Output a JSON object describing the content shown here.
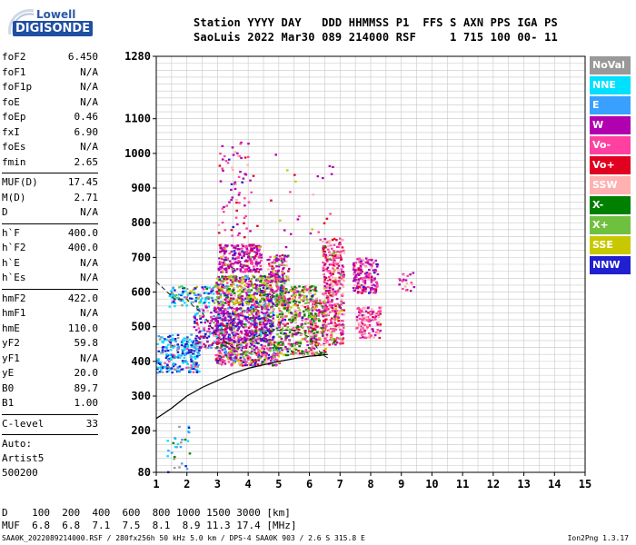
{
  "logo": {
    "brand_top": "Lowell",
    "brand_main": "DIGISONDE"
  },
  "header": {
    "line1": "Station YYYY DAY   DDD HHMMSS P1  FFS S AXN PPS IGA PS",
    "line2": "SaoLuis 2022 Mar30 089 214000 RSF     1 715 100 00- 11"
  },
  "params": [
    {
      "type": "row",
      "key": "foF2",
      "value": "6.450"
    },
    {
      "type": "row",
      "key": "foF1",
      "value": "N/A"
    },
    {
      "type": "row",
      "key": "foF1p",
      "value": "N/A"
    },
    {
      "type": "row",
      "key": "foE",
      "value": "N/A"
    },
    {
      "type": "row",
      "key": "foEp",
      "value": "0.46"
    },
    {
      "type": "row",
      "key": "fxI",
      "value": "6.90"
    },
    {
      "type": "row",
      "key": "foEs",
      "value": "N/A"
    },
    {
      "type": "row",
      "key": "fmin",
      "value": "2.65"
    },
    {
      "type": "sep"
    },
    {
      "type": "row",
      "key": "MUF(D)",
      "value": "17.45"
    },
    {
      "type": "row",
      "key": "M(D)",
      "value": "2.71"
    },
    {
      "type": "row",
      "key": "D",
      "value": "N/A"
    },
    {
      "type": "sep"
    },
    {
      "type": "row",
      "key": "h`F",
      "value": "400.0"
    },
    {
      "type": "row",
      "key": "h`F2",
      "value": "400.0"
    },
    {
      "type": "row",
      "key": "h`E",
      "value": "N/A"
    },
    {
      "type": "row",
      "key": "h`Es",
      "value": "N/A"
    },
    {
      "type": "sep"
    },
    {
      "type": "row",
      "key": "hmF2",
      "value": "422.0"
    },
    {
      "type": "row",
      "key": "hmF1",
      "value": "N/A"
    },
    {
      "type": "row",
      "key": "hmE",
      "value": "110.0"
    },
    {
      "type": "row",
      "key": "yF2",
      "value": "59.8"
    },
    {
      "type": "row",
      "key": "yF1",
      "value": "N/A"
    },
    {
      "type": "row",
      "key": "yE",
      "value": "20.0"
    },
    {
      "type": "row",
      "key": "B0",
      "value": "89.7"
    },
    {
      "type": "row",
      "key": "B1",
      "value": "1.00"
    },
    {
      "type": "sep"
    },
    {
      "type": "row",
      "key": "C-level",
      "value": "33"
    },
    {
      "type": "sep"
    },
    {
      "type": "text",
      "text": "Auto:"
    },
    {
      "type": "text",
      "text": "Artist5"
    },
    {
      "type": "text",
      "text": "500200"
    }
  ],
  "legend": [
    {
      "label": "NoVal",
      "color": "#999999"
    },
    {
      "label": "NNE",
      "color": "#00e0ff"
    },
    {
      "label": "E",
      "color": "#3aa0ff"
    },
    {
      "label": "W",
      "color": "#b000b0"
    },
    {
      "label": "Vo-",
      "color": "#ff40a0"
    },
    {
      "label": "Vo+",
      "color": "#e00020"
    },
    {
      "label": "SSW",
      "color": "#ffb0b0"
    },
    {
      "label": "X-",
      "color": "#008000"
    },
    {
      "label": "X+",
      "color": "#70c040"
    },
    {
      "label": "SSE",
      "color": "#c8c800"
    },
    {
      "label": "NNW",
      "color": "#2020d0"
    }
  ],
  "bottom": {
    "row1": "D    100  200  400  600  800 1000 1500 3000 [km]",
    "row2": "MUF  6.8  6.8  7.1  7.5  8.1  8.9 11.3 17.4 [MHz]"
  },
  "footer": {
    "left": "SAA0K_2022089214000.RSF / 280fx256h 50 kHz 5.0 km / DPS-4 SAA0K 903 / 2.6 S 315.8 E",
    "right": "Ion2Png 1.3.17"
  },
  "chart_data": {
    "type": "scatter",
    "title": "",
    "xlabel": "",
    "ylabel": "",
    "xlim": [
      1,
      15
    ],
    "ylim": [
      80,
      1280
    ],
    "x_ticks": [
      "1",
      "2",
      "3",
      "4",
      "5",
      "6",
      "7",
      "8",
      "9",
      "10",
      "11",
      "12",
      "13",
      "14",
      "15"
    ],
    "y_ticks": [
      "80",
      "200",
      "300",
      "400",
      "500",
      "600",
      "700",
      "800",
      "900",
      "1000",
      "1100",
      "1280"
    ],
    "grid": true,
    "legend_position": "right",
    "colors": [
      "#999999",
      "#00e0ff",
      "#3aa0ff",
      "#b000b0",
      "#ff40a0",
      "#e00020",
      "#ffb0b0",
      "#008000",
      "#70c040",
      "#c8c800",
      "#2020d0"
    ],
    "clusters": [
      {
        "x": [
          1.0,
          2.4
        ],
        "y": [
          370,
          480
        ],
        "weights": [
          4,
          10,
          3,
          0,
          1,
          0,
          0,
          0,
          0,
          0,
          12
        ],
        "n": 260
      },
      {
        "x": [
          1.4,
          2.9
        ],
        "y": [
          560,
          620
        ],
        "weights": [
          1,
          6,
          4,
          0,
          1,
          0,
          0,
          1,
          2,
          3,
          5
        ],
        "n": 120
      },
      {
        "x": [
          2.2,
          3.0
        ],
        "y": [
          440,
          560
        ],
        "weights": [
          1,
          1,
          2,
          6,
          3,
          1,
          2,
          0,
          0,
          0,
          4
        ],
        "n": 120
      },
      {
        "x": [
          3.0,
          4.4
        ],
        "y": [
          660,
          740
        ],
        "weights": [
          0,
          0,
          0,
          12,
          5,
          1,
          1,
          0,
          1,
          1,
          1
        ],
        "n": 260
      },
      {
        "x": [
          2.9,
          5.2
        ],
        "y": [
          560,
          650
        ],
        "weights": [
          1,
          0,
          1,
          6,
          3,
          2,
          1,
          4,
          4,
          7,
          2
        ],
        "n": 520
      },
      {
        "x": [
          2.9,
          4.8
        ],
        "y": [
          460,
          560
        ],
        "weights": [
          1,
          1,
          1,
          10,
          4,
          1,
          1,
          1,
          1,
          1,
          4
        ],
        "n": 560
      },
      {
        "x": [
          2.9,
          5.0
        ],
        "y": [
          390,
          460
        ],
        "weights": [
          0,
          0,
          1,
          4,
          5,
          2,
          2,
          2,
          2,
          2,
          2
        ],
        "n": 380
      },
      {
        "x": [
          4.6,
          5.3
        ],
        "y": [
          630,
          710
        ],
        "weights": [
          0,
          0,
          0,
          8,
          5,
          1,
          2,
          1,
          1,
          1,
          1
        ],
        "n": 110
      },
      {
        "x": [
          4.9,
          6.2
        ],
        "y": [
          420,
          620
        ],
        "weights": [
          0,
          0,
          0,
          3,
          5,
          2,
          3,
          6,
          5,
          3,
          1
        ],
        "n": 460
      },
      {
        "x": [
          6.0,
          6.5
        ],
        "y": [
          420,
          580
        ],
        "weights": [
          0,
          0,
          0,
          3,
          6,
          2,
          3,
          3,
          2,
          2,
          0
        ],
        "n": 150
      },
      {
        "x": [
          6.4,
          7.1
        ],
        "y": [
          450,
          760
        ],
        "weights": [
          0,
          0,
          0,
          4,
          10,
          3,
          4,
          1,
          1,
          1,
          0
        ],
        "n": 380
      },
      {
        "x": [
          7.4,
          8.2
        ],
        "y": [
          600,
          700
        ],
        "weights": [
          0,
          0,
          0,
          10,
          6,
          1,
          2,
          0,
          0,
          0,
          1
        ],
        "n": 180
      },
      {
        "x": [
          7.5,
          8.3
        ],
        "y": [
          470,
          560
        ],
        "weights": [
          0,
          0,
          0,
          3,
          8,
          2,
          6,
          0,
          0,
          0,
          0
        ],
        "n": 130
      },
      {
        "x": [
          8.9,
          9.4
        ],
        "y": [
          600,
          660
        ],
        "weights": [
          0,
          0,
          0,
          7,
          4,
          1,
          1,
          0,
          0,
          0,
          0
        ],
        "n": 20
      },
      {
        "x": [
          3.0,
          4.0
        ],
        "y": [
          760,
          1050
        ],
        "weights": [
          0,
          0,
          0,
          6,
          6,
          3,
          2,
          0,
          0,
          0,
          1
        ],
        "n": 70
      },
      {
        "x": [
          1.3,
          2.1
        ],
        "y": [
          80,
          220
        ],
        "weights": [
          1,
          3,
          2,
          0,
          0,
          0,
          0,
          1,
          0,
          0,
          3
        ],
        "n": 30
      },
      {
        "x": [
          4.0,
          6.8
        ],
        "y": [
          720,
          1000
        ],
        "weights": [
          0,
          0,
          0,
          4,
          4,
          3,
          1,
          0,
          0,
          2,
          0
        ],
        "n": 30
      }
    ],
    "trace_dashed": [
      [
        1.0,
        630
      ],
      [
        1.6,
        580
      ],
      [
        2.0,
        580
      ],
      [
        2.2,
        560
      ],
      [
        2.5,
        540
      ],
      [
        3.0,
        470
      ],
      [
        3.5,
        440
      ],
      [
        4.0,
        460
      ],
      [
        4.5,
        480
      ],
      [
        5.0,
        490
      ],
      [
        5.5,
        490
      ],
      [
        6.0,
        470
      ],
      [
        6.4,
        420
      ],
      [
        6.6,
        410
      ]
    ],
    "trace_solid": [
      [
        1.0,
        235
      ],
      [
        1.5,
        265
      ],
      [
        2.0,
        300
      ],
      [
        2.5,
        325
      ],
      [
        3.0,
        345
      ],
      [
        3.5,
        365
      ],
      [
        4.0,
        380
      ],
      [
        4.5,
        390
      ],
      [
        5.0,
        400
      ],
      [
        5.5,
        408
      ],
      [
        6.0,
        415
      ],
      [
        6.4,
        418
      ],
      [
        6.6,
        420
      ]
    ]
  }
}
